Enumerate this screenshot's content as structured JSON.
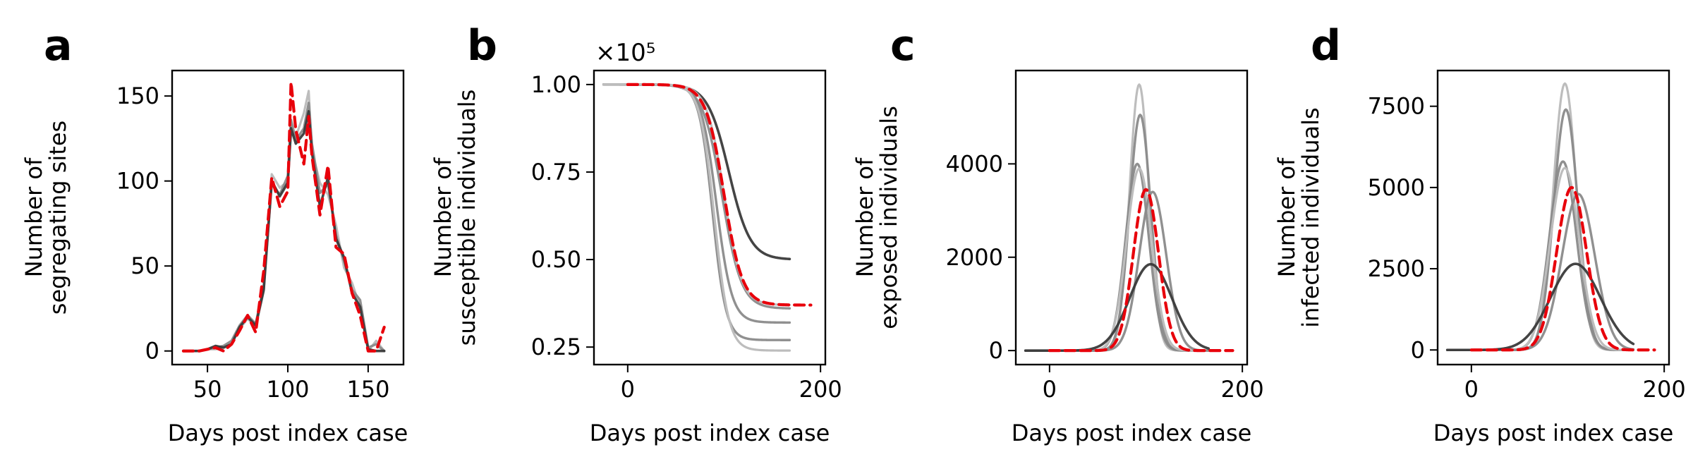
{
  "colors": {
    "observed": "#e8000b",
    "ensemble_light": "#bdbdbd",
    "ensemble_mid": "#8a8a8a",
    "ensemble_dark": "#3a3a3a"
  },
  "chart_data": [
    {
      "panel": "a",
      "type": "line",
      "xlabel": "Days post index case",
      "ylabel": [
        "Number of",
        "segregating sites"
      ],
      "xlim": [
        28,
        172
      ],
      "ylim": [
        -8,
        165
      ],
      "xticks": [
        50,
        100,
        150
      ],
      "yticks": [
        0,
        50,
        100,
        150
      ],
      "scale_note": "",
      "x": [
        35,
        40,
        45,
        50,
        55,
        60,
        65,
        70,
        75,
        80,
        85,
        90,
        95,
        100,
        102,
        105,
        110,
        113,
        115,
        120,
        125,
        130,
        135,
        140,
        145,
        150,
        155,
        160
      ],
      "series": [
        {
          "style": "ensemble_light",
          "values": [
            0,
            0,
            0,
            1,
            1,
            2,
            5,
            13,
            19,
            14,
            35,
            104,
            96,
            100,
            129,
            126,
            140,
            153,
            118,
            99,
            92,
            74,
            49,
            40,
            26,
            0,
            6,
            0
          ]
        },
        {
          "style": "ensemble_mid",
          "values": [
            0,
            0,
            0,
            1,
            2,
            3,
            6,
            15,
            21,
            16,
            38,
            98,
            92,
            103,
            136,
            124,
            131,
            146,
            122,
            93,
            98,
            68,
            53,
            36,
            30,
            2,
            4,
            0
          ]
        },
        {
          "style": "ensemble_dark",
          "values": [
            0,
            0,
            0,
            1,
            3,
            2,
            4,
            14,
            20,
            15,
            36,
            100,
            91,
            99,
            131,
            122,
            128,
            141,
            117,
            85,
            102,
            66,
            55,
            34,
            26,
            1,
            0,
            0
          ]
        },
        {
          "style": "observed",
          "values": [
            0,
            0,
            0,
            1,
            2,
            0,
            4,
            12,
            21,
            11,
            47,
            102,
            85,
            94,
            158,
            130,
            110,
            138,
            115,
            80,
            109,
            61,
            57,
            34,
            21,
            0,
            0,
            14
          ]
        }
      ]
    },
    {
      "panel": "b",
      "type": "line",
      "xlabel": "Days post index case",
      "ylabel": [
        "Number of",
        "susceptible individuals"
      ],
      "xlim": [
        -35,
        205
      ],
      "ylim": [
        0.2,
        1.04
      ],
      "xticks": [
        0,
        200
      ],
      "yticks": [
        0.25,
        0.5,
        0.75,
        1.0
      ],
      "ytick_labels": [
        "0.25",
        "0.50",
        "0.75",
        "1.00"
      ],
      "scale_note": "×10⁵",
      "logistic_ensemble": [
        {
          "style": "ensemble_dark",
          "mid": 105,
          "width": 11,
          "final": 0.5,
          "x_start": -25,
          "x_end": 168
        },
        {
          "style": "ensemble_mid",
          "mid": 98,
          "width": 10,
          "final": 0.36,
          "x_start": -25,
          "x_end": 168
        },
        {
          "style": "ensemble_mid",
          "mid": 92,
          "width": 8,
          "final": 0.32,
          "x_start": -25,
          "x_end": 168
        },
        {
          "style": "ensemble_mid",
          "mid": 88,
          "width": 7,
          "final": 0.27,
          "x_start": -25,
          "x_end": 168
        },
        {
          "style": "ensemble_light",
          "mid": 90,
          "width": 7.5,
          "final": 0.24,
          "x_start": -25,
          "x_end": 168
        },
        {
          "style": "ensemble_light",
          "mid": 100,
          "width": 9,
          "final": 0.37,
          "x_start": -25,
          "x_end": 168
        },
        {
          "style": "observed",
          "mid": 100,
          "width": 9.5,
          "final": 0.37,
          "x_start": 0,
          "x_end": 190
        }
      ]
    },
    {
      "panel": "c",
      "type": "line",
      "xlabel": "Days post index case",
      "ylabel": [
        "Number of",
        "exposed individuals"
      ],
      "xlim": [
        -35,
        205
      ],
      "ylim": [
        -300,
        6000
      ],
      "xticks": [
        0,
        200
      ],
      "yticks": [
        0,
        2000,
        4000
      ],
      "scale_note": "",
      "gaussian_ensemble": [
        {
          "style": "ensemble_light",
          "peak": 5700,
          "center": 93,
          "width": 10,
          "x_start": -25,
          "x_end": 165
        },
        {
          "style": "ensemble_mid",
          "peak": 5050,
          "center": 94,
          "width": 11,
          "x_start": -25,
          "x_end": 165
        },
        {
          "style": "ensemble_mid",
          "peak": 4000,
          "center": 91,
          "width": 12,
          "x_start": -25,
          "x_end": 165
        },
        {
          "style": "ensemble_light",
          "peak": 3900,
          "center": 93,
          "width": 13,
          "x_start": -25,
          "x_end": 165
        },
        {
          "style": "ensemble_mid",
          "peak": 3400,
          "center": 107,
          "width": 14,
          "x_start": -25,
          "x_end": 165
        },
        {
          "style": "ensemble_dark",
          "peak": 1850,
          "center": 105,
          "width": 22,
          "x_start": -25,
          "x_end": 165
        },
        {
          "style": "observed",
          "peak": 3450,
          "center": 100,
          "width": 13,
          "x_start": 0,
          "x_end": 190
        }
      ]
    },
    {
      "panel": "d",
      "type": "line",
      "xlabel": "Days post index case",
      "ylabel": [
        "Number of",
        "infected individuals"
      ],
      "xlim": [
        -35,
        205
      ],
      "ylim": [
        -450,
        8600
      ],
      "xticks": [
        0,
        200
      ],
      "yticks": [
        0,
        2500,
        5000,
        7500
      ],
      "scale_note": "",
      "gaussian_ensemble": [
        {
          "style": "ensemble_light",
          "peak": 8200,
          "center": 97,
          "width": 12,
          "x_start": -25,
          "x_end": 168
        },
        {
          "style": "ensemble_mid",
          "peak": 7400,
          "center": 98,
          "width": 12.5,
          "x_start": -25,
          "x_end": 168
        },
        {
          "style": "ensemble_mid",
          "peak": 5800,
          "center": 95,
          "width": 14,
          "x_start": -25,
          "x_end": 168
        },
        {
          "style": "ensemble_light",
          "peak": 5600,
          "center": 97,
          "width": 15,
          "x_start": -25,
          "x_end": 168
        },
        {
          "style": "ensemble_mid",
          "peak": 4800,
          "center": 111,
          "width": 17,
          "x_start": -25,
          "x_end": 168
        },
        {
          "style": "ensemble_dark",
          "peak": 2650,
          "center": 108,
          "width": 26,
          "x_start": -25,
          "x_end": 168
        },
        {
          "style": "observed",
          "peak": 5000,
          "center": 104,
          "width": 15.5,
          "x_start": 0,
          "x_end": 190
        }
      ]
    }
  ]
}
